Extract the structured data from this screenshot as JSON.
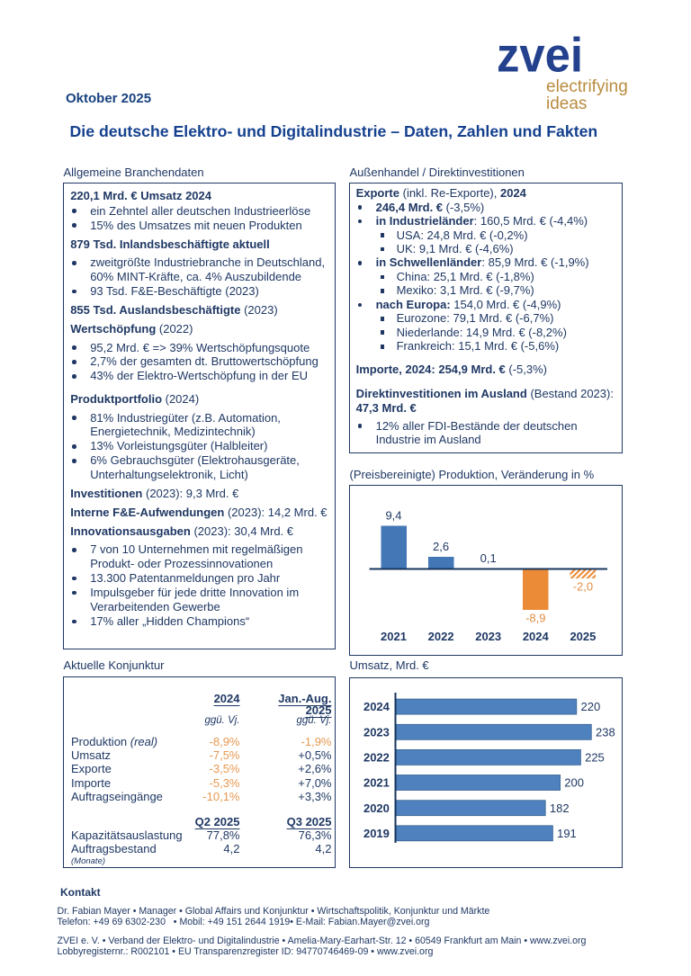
{
  "header": {
    "date": "Oktober 2025",
    "title": "Die deutsche Elektro- und Digitalindustrie – Daten, Zahlen und Fakten",
    "logo": {
      "wordmark": "zvei",
      "tagline1": "electrifying",
      "tagline2": "ideas"
    }
  },
  "colors": {
    "navy": "#1F3864",
    "title_blue": "#15418F",
    "logo_blue": "#24418E",
    "tagline_amber": "#B98C3F",
    "bar_blue": "#4E81BD",
    "bar_blue_prod": "#4377B5",
    "bar_orange": "#EC8B37",
    "chart_neg_label_orange": "#E28E44",
    "table_neg_orange": "#E89850"
  },
  "sections": {
    "branchendaten": {
      "label": "Allgemeine Branchendaten",
      "blocks": [
        {
          "type": "h",
          "mt": 0,
          "segments": [
            {
              "t": "220,1 Mrd. € Umsatz 2024",
              "s": "b"
            }
          ]
        },
        {
          "type": "ul",
          "mt": 1,
          "items": [
            {
              "level": 1,
              "segments": [
                {
                  "t": "ein Zehntel aller deutschen Industrieerlöse",
                  "s": "r"
                }
              ]
            },
            {
              "level": 1,
              "segments": [
                {
                  "t": "15% des Umsatzes mit neuen Produkten",
                  "s": "r"
                }
              ]
            }
          ]
        },
        {
          "type": "h",
          "segments": [
            {
              "t": "879 Tsd. Inlandsbeschäftigte aktuell",
              "s": "b"
            }
          ]
        },
        {
          "type": "ul",
          "items": [
            {
              "level": 1,
              "segments": [
                {
                  "t": "zweitgrößte Industriebranche in Deutschland, 60% MINT-Kräfte, ca. 4% Auszubildende",
                  "s": "r"
                }
              ]
            },
            {
              "level": 1,
              "segments": [
                {
                  "t": "93 Tsd. F&E-Beschäftigte (2023)",
                  "s": "r"
                }
              ]
            }
          ]
        },
        {
          "type": "h",
          "segments": [
            {
              "t": "855 Tsd. Auslandsbeschäftigte",
              "s": "b"
            },
            {
              "t": " (2023)",
              "s": "r"
            }
          ]
        },
        {
          "type": "h",
          "segments": [
            {
              "t": "Wertschöpfung",
              "s": "b"
            },
            {
              "t": " (2022)",
              "s": "r"
            }
          ]
        },
        {
          "type": "ul",
          "items": [
            {
              "level": 1,
              "segments": [
                {
                  "t": "95,2 Mrd. € => 39% Wertschöpfungsquote",
                  "s": "r"
                }
              ]
            },
            {
              "level": 1,
              "segments": [
                {
                  "t": "2,7% der gesamten dt. Bruttowertschöpfung",
                  "s": "r"
                }
              ]
            },
            {
              "level": 1,
              "segments": [
                {
                  "t": "43% der Elektro-Wertschöpfung in der EU",
                  "s": "r"
                }
              ]
            }
          ]
        },
        {
          "type": "h",
          "mt": 9.5,
          "segments": [
            {
              "t": "Produktportfolio",
              "s": "b"
            },
            {
              "t": " (2024)",
              "s": "r"
            }
          ]
        },
        {
          "type": "ul",
          "items": [
            {
              "level": 1,
              "segments": [
                {
                  "t": "81% Industriegüter (z.B. Automation, Energietechnik, Medizintechnik)",
                  "s": "r"
                }
              ]
            },
            {
              "level": 1,
              "segments": [
                {
                  "t": "13% Vorleistungsgüter (Halbleiter)",
                  "s": "r"
                }
              ]
            },
            {
              "level": 1,
              "segments": [
                {
                  "t": "6% Gebrauchsgüter (Elektrohausgeräte, Unterhaltungselektronik, Licht)",
                  "s": "r"
                }
              ]
            }
          ]
        },
        {
          "type": "h",
          "segments": [
            {
              "t": "Investitionen",
              "s": "b"
            },
            {
              "t": " (2023): 9,3 Mrd. €",
              "s": "r"
            }
          ]
        },
        {
          "type": "h",
          "segments": [
            {
              "t": "Interne F&E-Aufwendungen",
              "s": "b"
            },
            {
              "t": " (2023): 14,2 Mrd. €",
              "s": "r"
            }
          ]
        },
        {
          "type": "h",
          "segments": [
            {
              "t": "Innovationsausgaben",
              "s": "b"
            },
            {
              "t": " (2023): 30,4 Mrd. €",
              "s": "r"
            }
          ]
        },
        {
          "type": "ul",
          "items": [
            {
              "level": 1,
              "segments": [
                {
                  "t": "7 von 10 Unternehmen mit regelmäßigen Produkt- oder Prozessinnovationen",
                  "s": "r"
                }
              ]
            },
            {
              "level": 1,
              "segments": [
                {
                  "t": "13.300 Patentanmeldungen pro Jahr",
                  "s": "r"
                }
              ]
            },
            {
              "level": 1,
              "segments": [
                {
                  "t": "Impulsgeber für jede dritte Innovation im Verarbeitenden Gewerbe",
                  "s": "r"
                }
              ]
            },
            {
              "level": 1,
              "segments": [
                {
                  "t": "17% aller „Hidden Champions“",
                  "s": "r"
                }
              ]
            }
          ]
        }
      ]
    },
    "aussenhandel": {
      "label": "Außenhandel / Direktinvestitionen",
      "blocks": [
        {
          "type": "h",
          "mt": 0,
          "segments": [
            {
              "t": "Exporte",
              "s": "b"
            },
            {
              "t": " (inkl. Re-Exporte), ",
              "s": "r"
            },
            {
              "t": "2024",
              "s": "b"
            }
          ]
        },
        {
          "type": "ul",
          "mt": 0,
          "items": [
            {
              "level": 1,
              "segments": [
                {
                  "t": "246,4 Mrd. €",
                  "s": "b"
                },
                {
                  "t": " (-3,5%)",
                  "s": "r"
                }
              ]
            },
            {
              "level": 1,
              "segments": [
                {
                  "t": "in Industrieländer",
                  "s": "b"
                },
                {
                  "t": ": 160,5 Mrd. € (-4,4%)",
                  "s": "r"
                }
              ]
            },
            {
              "level": 2,
              "segments": [
                {
                  "t": "USA: 24,8 Mrd. € (-0,2%)",
                  "s": "r"
                }
              ]
            },
            {
              "level": 2,
              "segments": [
                {
                  "t": "UK: 9,1 Mrd. € (-4,6%)",
                  "s": "r"
                }
              ]
            },
            {
              "level": 1,
              "segments": [
                {
                  "t": "in Schwellenländer",
                  "s": "b"
                },
                {
                  "t": ": 85,9 Mrd. € (-1,9%)",
                  "s": "r"
                }
              ]
            },
            {
              "level": 2,
              "segments": [
                {
                  "t": "China: 25,1 Mrd. € (-1,8%)",
                  "s": "r"
                }
              ]
            },
            {
              "level": 2,
              "segments": [
                {
                  "t": "Mexiko: 3,1 Mrd. € (-9,7%)",
                  "s": "r"
                }
              ]
            },
            {
              "level": 1,
              "segments": [
                {
                  "t": "nach Europa:",
                  "s": "b"
                },
                {
                  "t": " 154,0 Mrd. € (-4,9%)",
                  "s": "r"
                }
              ]
            },
            {
              "level": 2,
              "segments": [
                {
                  "t": "Eurozone: 79,1 Mrd. € (-6,7%)",
                  "s": "r"
                }
              ]
            },
            {
              "level": 2,
              "segments": [
                {
                  "t": "Niederlande: 14,9 Mrd. € (-8,2%)",
                  "s": "r"
                }
              ]
            },
            {
              "level": 2,
              "segments": [
                {
                  "t": "Frankreich: 15,1 Mrd. € (-5,6%)",
                  "s": "r"
                }
              ]
            }
          ]
        },
        {
          "type": "h",
          "mt": 10.5,
          "segments": [
            {
              "t": "Importe, 2024: 254,9 Mrd. €",
              "s": "b"
            },
            {
              "t": " (-5,3%)",
              "s": "r"
            }
          ]
        },
        {
          "type": "h",
          "mt": 11.5,
          "segments": [
            {
              "t": "Direktinvestitionen im Ausland",
              "s": "b"
            },
            {
              "t": " (Bestand 2023):",
              "s": "r"
            }
          ]
        },
        {
          "type": "h",
          "mt": 0,
          "segments": [
            {
              "t": "47,3 Mrd. €",
              "s": "b"
            }
          ]
        },
        {
          "type": "ul",
          "mt": 4.7,
          "items": [
            {
              "level": 1,
              "segments": [
                {
                  "t": "12% aller FDI-Bestände der deutschen Industrie im Ausland",
                  "s": "r"
                }
              ]
            }
          ]
        }
      ]
    },
    "konjunktur": {
      "label": "Aktuelle Konjunktur",
      "col_header_1": "2024",
      "col_header_2a": "Jan.-Aug.",
      "col_header_2b": "2025",
      "subheader": "ggü. Vj.",
      "rows": [
        {
          "label": "Produktion ",
          "label_italic": "(real)",
          "v2024": "-8,9%",
          "neg2024": true,
          "v2025": "-1,9%",
          "neg2025": true
        },
        {
          "label": "Umsatz",
          "label_italic": "",
          "v2024": "-7,5%",
          "neg2024": true,
          "v2025": "+0,5%",
          "neg2025": false
        },
        {
          "label": "Exporte",
          "label_italic": "",
          "v2024": "-3,5%",
          "neg2024": true,
          "v2025": "+2,6%",
          "neg2025": false
        },
        {
          "label": "Importe",
          "label_italic": "",
          "v2024": "-5,3%",
          "neg2024": true,
          "v2025": "+7,0%",
          "neg2025": false
        },
        {
          "label": "Auftragseingänge",
          "label_italic": "",
          "v2024": "-10,1%",
          "neg2024": true,
          "v2025": "+3,3%",
          "neg2025": false
        }
      ],
      "q_header_1": "Q2 2025",
      "q_header_2": "Q3 2025",
      "q_rows": [
        {
          "label": "Kapazitätsauslastung",
          "note": "",
          "q1": "77,8%",
          "q2": "76,3%"
        },
        {
          "label": "Auftragsbestand",
          "note": "(Monate)",
          "q1": "4,2",
          "q2": "4,2"
        }
      ]
    }
  },
  "chart_data": [
    {
      "type": "bar",
      "title": "(Preisbereinigte) Produktion, Veränderung in %",
      "categories": [
        "2021",
        "2022",
        "2023",
        "2024",
        "2025"
      ],
      "values": [
        9.4,
        2.6,
        0.1,
        -8.9,
        -2.0
      ],
      "value_labels": [
        "9,4",
        "2,6",
        "0,1",
        "-8,9",
        "-2,0"
      ],
      "bar_styles": [
        "blue",
        "blue",
        "blue",
        "orange",
        "orange_hatch"
      ],
      "ylabel": "Veränderung in %",
      "xlabel": "",
      "ylim": [
        -12,
        14
      ],
      "grid": false,
      "legend": false
    },
    {
      "type": "bar",
      "orientation": "horizontal",
      "title": "Umsatz, Mrd. €",
      "categories": [
        "2024",
        "2023",
        "2022",
        "2021",
        "2020",
        "2019"
      ],
      "values": [
        220,
        238,
        225,
        200,
        182,
        191
      ],
      "value_labels": [
        "220",
        "238",
        "225",
        "200",
        "182",
        "191"
      ],
      "xlabel": "Umsatz, Mrd. €",
      "ylabel": "",
      "xlim": [
        0,
        260
      ],
      "grid": false,
      "legend": false
    }
  ],
  "footer": {
    "heading": "Kontakt",
    "line1": "Dr. Fabian Mayer • Manager • Global Affairs und Konjunktur • Wirtschaftspolitik, Konjunktur und Märkte",
    "line2": "Telefon: +49 69 6302-230   • Mobil: +49 151 2644 1919• E-Mail: Fabian.Mayer@zvei.org",
    "line3": "ZVEI e. V. • Verband der Elektro- und Digitalindustrie • Amelia-Mary-Earhart-Str. 12 • 60549 Frankfurt am Main • www.zvei.org",
    "line4": "Lobbyregisternr.: R002101 • EU Transparenzregister ID: 94770746469-09 • www.zvei.org"
  }
}
